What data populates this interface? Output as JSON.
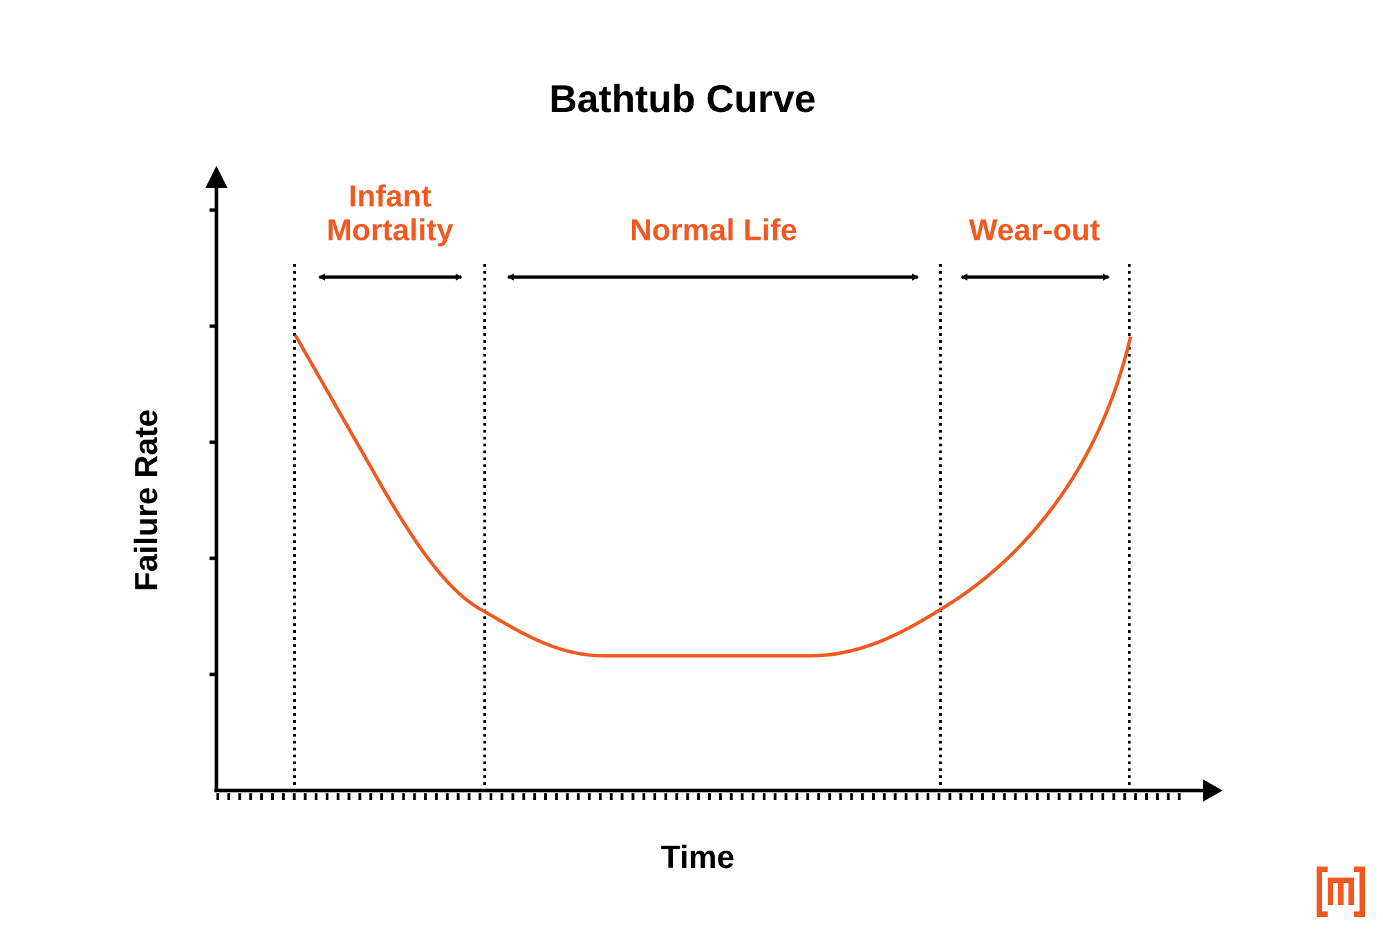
{
  "title": "Bathtub Curve",
  "y_axis_label": "Failure Rate",
  "x_axis_label": "Time",
  "phases": [
    {
      "label_lines": [
        "Infant",
        "Mortality"
      ]
    },
    {
      "label_lines": [
        "Normal Life"
      ]
    },
    {
      "label_lines": [
        "Wear-out"
      ]
    }
  ]
}
